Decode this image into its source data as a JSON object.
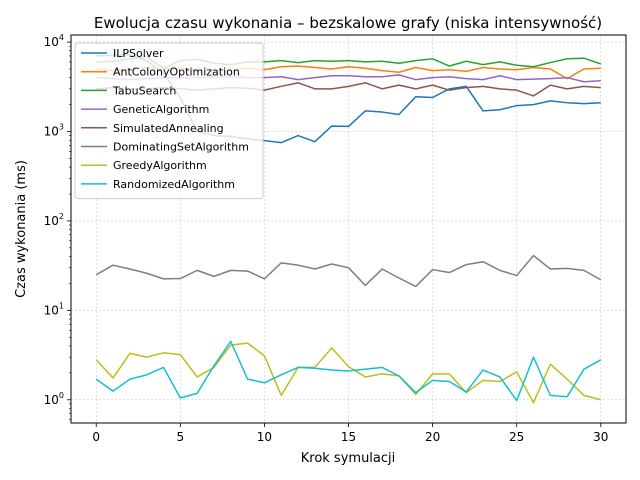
{
  "chart_data": {
    "type": "line",
    "title": "Ewolucja czasu wykonania – bezskalowe grafy (niska intensywność)",
    "xlabel": "Krok symulacji",
    "ylabel": "Czas wykonania (ms)",
    "yscale": "log",
    "xlim": [
      -1.5,
      31.5
    ],
    "ylim": [
      0.55,
      12000
    ],
    "x_ticks": [
      0,
      5,
      10,
      15,
      20,
      25,
      30
    ],
    "y_ticks": [
      1,
      10,
      100,
      1000,
      10000
    ],
    "y_tick_labels": [
      {
        "base": "10",
        "exp": "0"
      },
      {
        "base": "10",
        "exp": "1"
      },
      {
        "base": "10",
        "exp": "2"
      },
      {
        "base": "10",
        "exp": "3"
      },
      {
        "base": "10",
        "exp": "4"
      }
    ],
    "grid": true,
    "legend_position": "top-left",
    "x": [
      0,
      1,
      2,
      3,
      4,
      5,
      6,
      7,
      8,
      9,
      10,
      11,
      12,
      13,
      14,
      15,
      16,
      17,
      18,
      19,
      20,
      21,
      22,
      23,
      24,
      25,
      26,
      27,
      28,
      29,
      30
    ],
    "series": [
      {
        "name": "ILPSolver",
        "color": "#1f77b4",
        "values": [
          7000,
          7100,
          7200,
          6200,
          4500,
          2400,
          1000,
          900,
          880,
          830,
          790,
          750,
          900,
          770,
          1150,
          1140,
          1700,
          1650,
          1550,
          2450,
          2400,
          3000,
          3200,
          1700,
          1750,
          1950,
          2000,
          2200,
          2100,
          2050,
          2100
        ]
      },
      {
        "name": "AntColonyOptimization",
        "color": "#ff7f0e",
        "values": [
          5000,
          4800,
          5000,
          5200,
          5000,
          5100,
          4900,
          4800,
          4900,
          5100,
          4900,
          5300,
          5400,
          5200,
          5000,
          5300,
          5100,
          4800,
          4600,
          5200,
          4800,
          4900,
          4700,
          5200,
          5000,
          4900,
          5200,
          5000,
          3900,
          5000,
          5100
        ]
      },
      {
        "name": "TabuSearch",
        "color": "#2ca02c",
        "values": [
          6000,
          6100,
          6500,
          6800,
          5100,
          6200,
          6400,
          5800,
          5600,
          6000,
          6000,
          6200,
          5900,
          6200,
          6100,
          6200,
          6000,
          6100,
          5800,
          6200,
          6500,
          5400,
          6100,
          5600,
          6000,
          5500,
          5300,
          5900,
          6500,
          6600,
          5700
        ]
      },
      {
        "name": "GeneticAlgorithm",
        "color": "#9467bd",
        "values": [
          4000,
          3900,
          3800,
          3900,
          4000,
          3950,
          4000,
          4050,
          4100,
          4000,
          4000,
          4100,
          3800,
          4000,
          4200,
          4200,
          4100,
          4100,
          4300,
          3800,
          4000,
          4100,
          3900,
          3800,
          4200,
          3800,
          3850,
          3900,
          4000,
          3600,
          3700
        ]
      },
      {
        "name": "SimulatedAnnealing",
        "color": "#8c564b",
        "values": [
          3000,
          3100,
          3000,
          3000,
          3100,
          3000,
          2900,
          3000,
          3100,
          3050,
          2900,
          3200,
          3500,
          3000,
          3000,
          3200,
          3500,
          3000,
          3300,
          3000,
          3300,
          2900,
          3100,
          3200,
          3000,
          2900,
          2500,
          3300,
          3000,
          3200,
          3100
        ]
      },
      {
        "name": "DominatingSetAlgorithm",
        "color": "#7f7f7f",
        "values": [
          25,
          32,
          29,
          26,
          22.5,
          22.7,
          28,
          24,
          28,
          27.5,
          22.5,
          34,
          32,
          29,
          33,
          30,
          19,
          29,
          23,
          18.5,
          28.5,
          26.5,
          32.5,
          35,
          28,
          24.5,
          41,
          29,
          29.5,
          28,
          22
        ]
      },
      {
        "name": "GreedyAlgorithm",
        "color": "#bcbd22",
        "values": [
          2.8,
          1.75,
          3.3,
          3.0,
          3.35,
          3.2,
          1.8,
          2.3,
          4.1,
          4.3,
          3.1,
          1.12,
          2.3,
          2.3,
          3.8,
          2.35,
          1.8,
          1.95,
          1.85,
          1.15,
          1.95,
          1.95,
          1.2,
          1.65,
          1.6,
          2.05,
          0.93,
          2.5,
          1.7,
          1.12,
          1.0
        ]
      },
      {
        "name": "RandomizedAlgorithm",
        "color": "#17becf",
        "values": [
          1.7,
          1.25,
          1.7,
          1.9,
          2.3,
          1.05,
          1.18,
          2.4,
          4.5,
          1.7,
          1.55,
          1.9,
          2.3,
          2.25,
          2.15,
          2.1,
          2.2,
          2.3,
          1.85,
          1.2,
          1.65,
          1.6,
          1.22,
          2.15,
          1.8,
          0.98,
          3.0,
          1.12,
          1.08,
          2.2,
          2.8
        ]
      }
    ]
  }
}
